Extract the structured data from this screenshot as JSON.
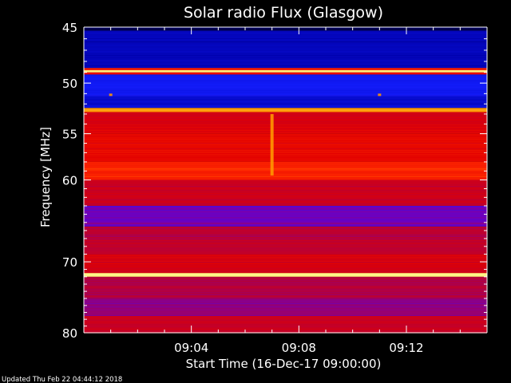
{
  "chart_data": {
    "type": "heatmap",
    "title": "Solar radio Flux (Glasgow)",
    "ylabel": "Frequency [MHz]",
    "xlabel": "Start Time (16-Dec-17 09:00:00)",
    "footer": "Updated Thu Feb 22 04:44:12 2018",
    "y_ticks": [
      45,
      50,
      55,
      60,
      70,
      80
    ],
    "x_ticks": [
      "09:04",
      "09:08",
      "09:12"
    ],
    "x_tick_minutes": [
      4,
      8,
      12
    ],
    "xlim_minutes": [
      0,
      15
    ],
    "ylim": [
      45,
      80
    ],
    "y_scale": "log",
    "colormap": "blue-red-yellow",
    "bands": [
      {
        "from": 45.0,
        "to": 45.3,
        "level": 0.05
      },
      {
        "from": 45.3,
        "to": 48.6,
        "level": 0.18
      },
      {
        "from": 48.6,
        "to": 48.8,
        "level": 0.7
      },
      {
        "from": 48.8,
        "to": 49.0,
        "level": 0.97
      },
      {
        "from": 49.0,
        "to": 49.2,
        "level": 0.65
      },
      {
        "from": 49.2,
        "to": 51.2,
        "level": 0.28
      },
      {
        "from": 51.2,
        "to": 52.4,
        "level": 0.22
      },
      {
        "from": 52.4,
        "to": 52.8,
        "level": 0.85
      },
      {
        "from": 52.8,
        "to": 55.0,
        "level": 0.58
      },
      {
        "from": 55.0,
        "to": 58.0,
        "level": 0.62
      },
      {
        "from": 58.0,
        "to": 60.0,
        "level": 0.7
      },
      {
        "from": 60.0,
        "to": 63.0,
        "level": 0.55
      },
      {
        "from": 63.0,
        "to": 65.5,
        "level": 0.4
      },
      {
        "from": 65.5,
        "to": 69.0,
        "level": 0.52
      },
      {
        "from": 69.0,
        "to": 71.5,
        "level": 0.57
      },
      {
        "from": 71.5,
        "to": 72.0,
        "level": 0.98
      },
      {
        "from": 72.0,
        "to": 75.0,
        "level": 0.5
      },
      {
        "from": 75.0,
        "to": 77.5,
        "level": 0.45
      },
      {
        "from": 77.5,
        "to": 80.0,
        "level": 0.55
      }
    ],
    "features": [
      {
        "minute": 7.0,
        "freq_from": 53.0,
        "freq_to": 59.5,
        "level": 0.85
      },
      {
        "minute": 1.0,
        "freq_from": 51.0,
        "freq_to": 51.2,
        "level": 0.85
      },
      {
        "minute": 11.0,
        "freq_from": 51.0,
        "freq_to": 51.2,
        "level": 0.85
      }
    ]
  }
}
